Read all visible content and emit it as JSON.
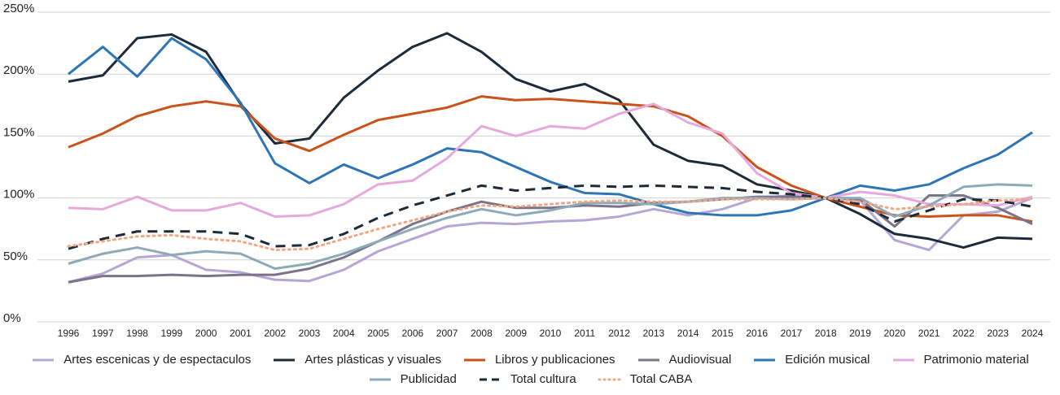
{
  "chart_data": {
    "type": "line",
    "categories": [
      "1996",
      "1997",
      "1998",
      "1999",
      "2000",
      "2001",
      "2002",
      "2003",
      "2004",
      "2005",
      "2006",
      "2007",
      "2008",
      "2009",
      "2010",
      "2011",
      "2012",
      "2013",
      "2014",
      "2015",
      "2016",
      "2017",
      "2018",
      "2019",
      "2020",
      "2021",
      "2022",
      "2023",
      "2024"
    ],
    "ylim": [
      0,
      250
    ],
    "yticks": [
      {
        "value": 0,
        "label": "0%"
      },
      {
        "value": 50,
        "label": "50%"
      },
      {
        "value": 100,
        "label": "100%"
      },
      {
        "value": 150,
        "label": "150%"
      },
      {
        "value": 200,
        "label": "200%"
      },
      {
        "value": 250,
        "label": "250%"
      }
    ],
    "grid": true,
    "series": [
      {
        "name": "Artes escenicas y de espectaculos",
        "color": "#b4a7d6",
        "style": "solid",
        "values": [
          32,
          39,
          52,
          54,
          42,
          40,
          34,
          33,
          42,
          57,
          67,
          77,
          80,
          79,
          81,
          82,
          85,
          91,
          86,
          91,
          100,
          102,
          100,
          98,
          66,
          58,
          86,
          89,
          100
        ]
      },
      {
        "name": "Artes plásticas y visuales",
        "color": "#1c2a3a",
        "style": "solid",
        "values": [
          194,
          199,
          229,
          232,
          218,
          176,
          144,
          148,
          181,
          203,
          222,
          233,
          218,
          196,
          186,
          192,
          179,
          143,
          130,
          126,
          111,
          106,
          100,
          87,
          71,
          67,
          60,
          68,
          67
        ]
      },
      {
        "name": "Libros y publicaciones",
        "color": "#c9531a",
        "style": "solid",
        "values": [
          141,
          152,
          166,
          174,
          178,
          174,
          148,
          138,
          151,
          163,
          168,
          173,
          182,
          179,
          180,
          178,
          176,
          174,
          166,
          150,
          125,
          110,
          100,
          93,
          86,
          85,
          86,
          86,
          81
        ]
      },
      {
        "name": "Audiovisual",
        "color": "#7a7389",
        "style": "solid",
        "values": [
          32,
          37,
          37,
          38,
          37,
          38,
          38,
          43,
          52,
          65,
          79,
          89,
          97,
          92,
          92,
          94,
          93,
          96,
          97,
          99,
          101,
          101,
          100,
          99,
          77,
          102,
          102,
          92,
          79
        ]
      },
      {
        "name": "Edición musical",
        "color": "#2e75b6",
        "style": "solid",
        "values": [
          200,
          222,
          198,
          229,
          212,
          177,
          128,
          112,
          127,
          116,
          127,
          140,
          137,
          125,
          113,
          104,
          103,
          95,
          88,
          86,
          86,
          90,
          100,
          110,
          106,
          111,
          124,
          135,
          153
        ]
      },
      {
        "name": "Patrimonio material",
        "color": "#e6a9dc",
        "style": "solid",
        "values": [
          92,
          91,
          101,
          90,
          90,
          96,
          85,
          86,
          95,
          111,
          114,
          132,
          158,
          150,
          158,
          156,
          168,
          176,
          161,
          152,
          120,
          104,
          100,
          105,
          102,
          95,
          95,
          94,
          101
        ]
      },
      {
        "name": "Publicidad",
        "color": "#8eaab9",
        "style": "solid",
        "values": [
          47,
          55,
          60,
          54,
          57,
          55,
          43,
          47,
          55,
          65,
          75,
          84,
          91,
          86,
          90,
          96,
          96,
          95,
          97,
          100,
          100,
          99,
          100,
          100,
          85,
          94,
          109,
          111,
          110
        ]
      },
      {
        "name": "Total cultura",
        "color": "#1c2a3a",
        "style": "dashed",
        "values": [
          59,
          67,
          73,
          73,
          73,
          71,
          61,
          62,
          71,
          84,
          94,
          102,
          110,
          106,
          108,
          110,
          109,
          110,
          109,
          108,
          105,
          103,
          100,
          95,
          81,
          90,
          99,
          98,
          93
        ]
      },
      {
        "name": "Total CABA",
        "color": "#f4a582",
        "style": "dotted",
        "values": [
          61,
          65,
          69,
          70,
          67,
          65,
          58,
          59,
          67,
          75,
          82,
          89,
          94,
          93,
          95,
          97,
          98,
          97,
          97,
          99,
          99,
          99,
          100,
          97,
          91,
          93,
          95,
          98,
          99
        ]
      }
    ]
  }
}
